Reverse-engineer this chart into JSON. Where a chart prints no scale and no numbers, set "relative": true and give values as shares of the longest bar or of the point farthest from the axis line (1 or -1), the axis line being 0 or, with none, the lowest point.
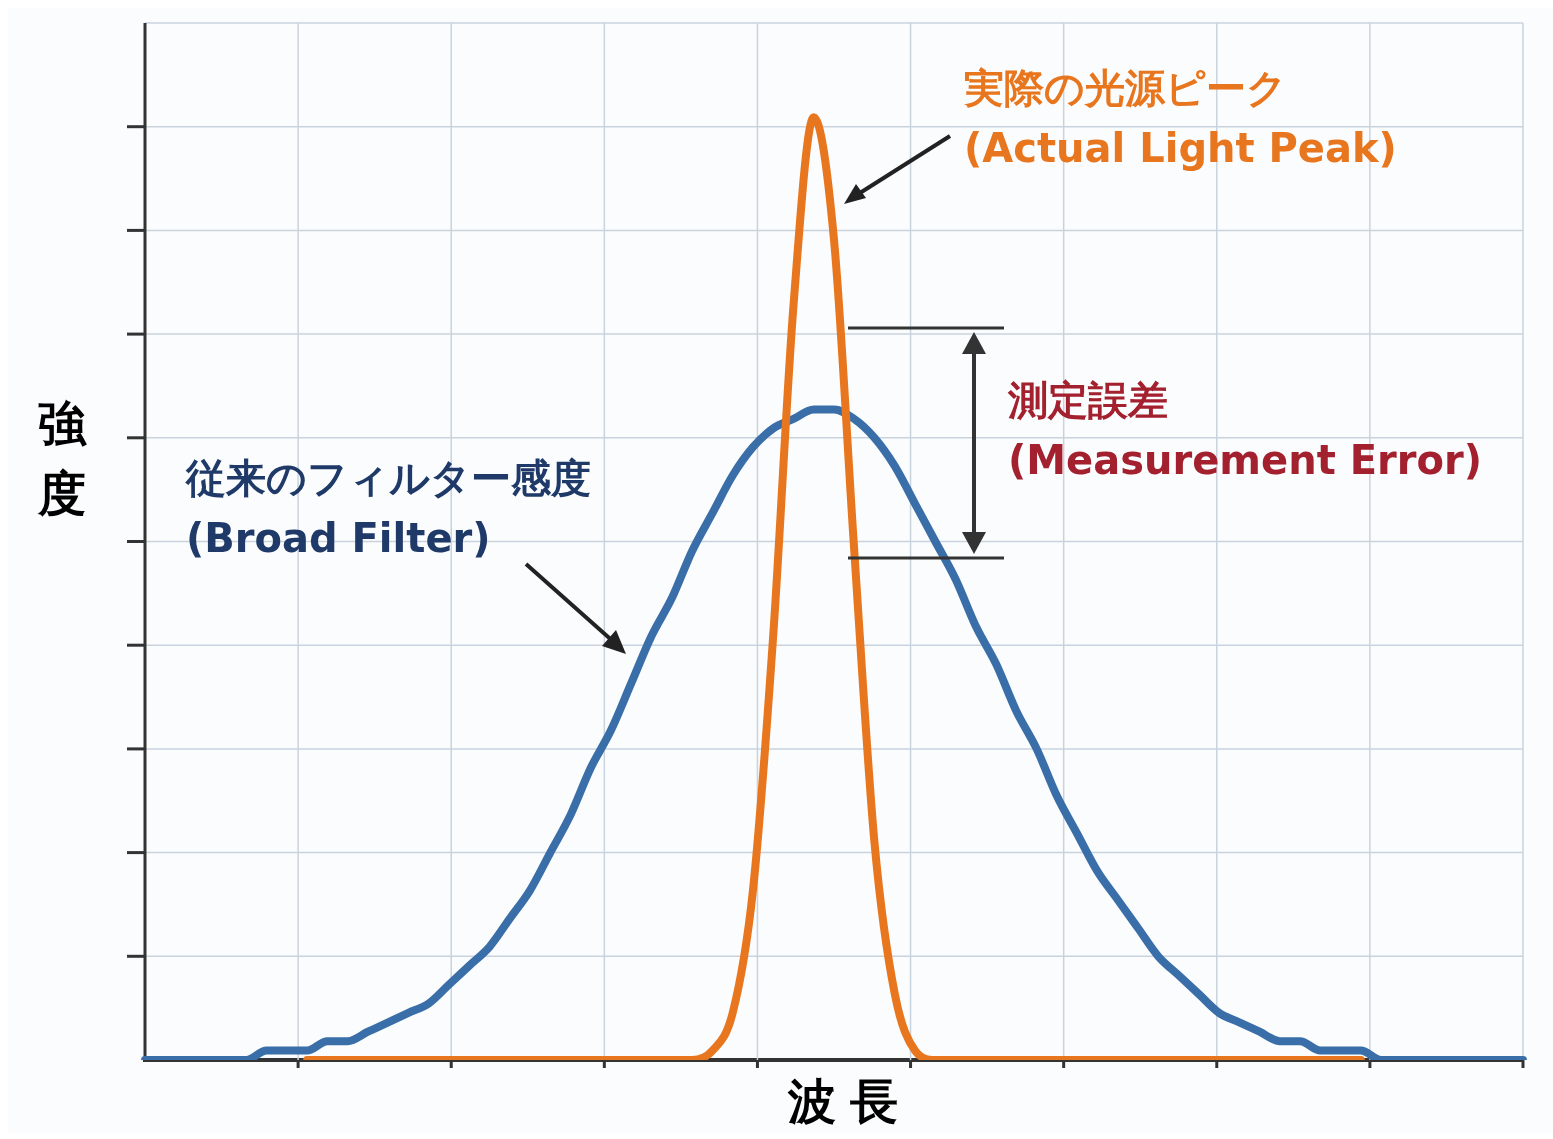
{
  "chart_data": {
    "type": "line",
    "relative": true,
    "grid": true,
    "xlabel": "波長",
    "ylabel": "強度",
    "categories": [
      null,
      null,
      null,
      null,
      null,
      null,
      null,
      null,
      null,
      null,
      null,
      null,
      null,
      null,
      null,
      null,
      null,
      null,
      null,
      null,
      null,
      null,
      null,
      null,
      null,
      null,
      null,
      null,
      null,
      null,
      null,
      null,
      null,
      null,
      null,
      null,
      null,
      null,
      null,
      null,
      null,
      null,
      null,
      null,
      null,
      null,
      null,
      null,
      null,
      null,
      null,
      null,
      null,
      null,
      null,
      null,
      null,
      null,
      null,
      null,
      null,
      null,
      null,
      null,
      null,
      null,
      null,
      null,
      null
    ],
    "series": [
      {
        "name": "従来のフィルター感度\n(Broad Filter)",
        "color": "#3a6ea8",
        "values": [
          0,
          0,
          0,
          0,
          0,
          0,
          0.01,
          0.01,
          0.01,
          0.02,
          0.02,
          0.03,
          0.04,
          0.05,
          0.06,
          0.08,
          0.1,
          0.12,
          0.15,
          0.18,
          0.22,
          0.26,
          0.31,
          0.35,
          0.4,
          0.45,
          0.49,
          0.54,
          0.58,
          0.62,
          0.65,
          0.67,
          0.68,
          0.69,
          0.69,
          0.68,
          0.66,
          0.63,
          0.59,
          0.55,
          0.51,
          0.46,
          0.42,
          0.37,
          0.33,
          0.28,
          0.24,
          0.2,
          0.17,
          0.14,
          0.11,
          0.09,
          0.07,
          0.05,
          0.04,
          0.03,
          0.02,
          0.02,
          0.01,
          0.01,
          0.01,
          0,
          0,
          0,
          0,
          0,
          0,
          0,
          0
        ]
      },
      {
        "name": "実際の光源ピーク\n(Actual Light Peak)",
        "color": "#e8761e",
        "values": [
          null,
          null,
          null,
          null,
          null,
          null,
          null,
          null,
          0,
          0,
          0,
          0,
          0,
          0,
          0,
          0,
          0,
          0,
          0,
          0,
          0,
          0,
          0,
          0,
          0,
          0,
          0,
          0,
          0.01,
          0.05,
          0.18,
          0.45,
          0.8,
          1,
          0.87,
          0.54,
          0.23,
          0.07,
          0.01,
          0,
          0,
          0,
          0,
          0,
          0,
          0,
          0,
          0,
          0,
          0,
          0,
          0,
          0,
          0,
          0,
          0,
          0,
          0,
          0,
          0,
          0,
          null,
          null,
          null,
          null,
          null,
          null,
          null,
          null
        ]
      }
    ],
    "annotations": [
      "測定誤差\n(Measurement Error)"
    ]
  }
}
